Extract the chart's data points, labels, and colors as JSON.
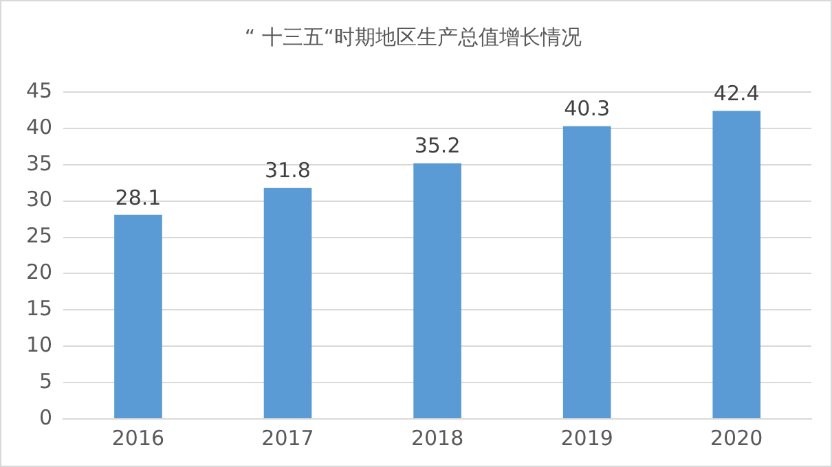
{
  "chart_data": {
    "type": "bar",
    "title": "“ 十三五“时期地区生产总值增长情况",
    "categories": [
      "2016",
      "2017",
      "2018",
      "2019",
      "2020"
    ],
    "values": [
      28.1,
      31.8,
      35.2,
      40.3,
      42.4
    ],
    "color": "#5b9bd5",
    "ylim": [
      0,
      45
    ],
    "yticks": [
      0,
      5,
      10,
      15,
      20,
      25,
      30,
      35,
      40,
      45
    ],
    "grid": "y",
    "data_labels": true,
    "legend": false
  }
}
